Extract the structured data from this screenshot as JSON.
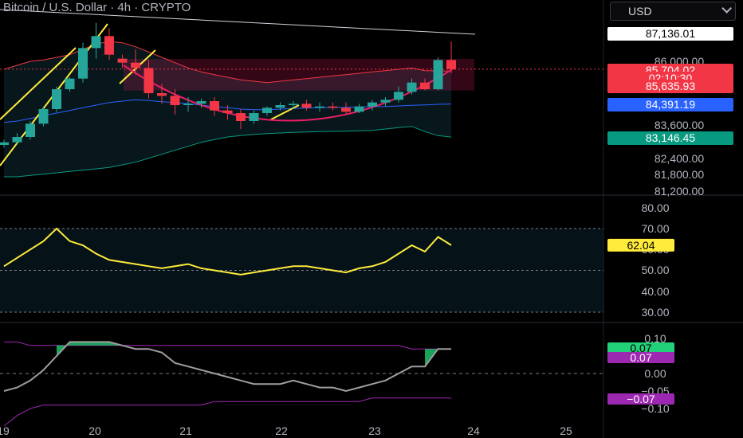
{
  "header": {
    "title": "Bitcoin / U.S. Dollar · 4h · CRYPTO",
    "currency": "USD"
  },
  "price_panel": {
    "axis_ticks": [
      "86,000.00",
      "83,600.00",
      "82,400.00",
      "81,800.00",
      "81,200.00"
    ],
    "tags": [
      {
        "text": "87,136.01",
        "bg": "#ffffff",
        "fg": "#000000",
        "name": "price-tag-high"
      },
      {
        "text": "85,704.02",
        "bg": "#f23645",
        "fg": "#ffffff",
        "name": "price-tag-last"
      },
      {
        "text": "02:10:30",
        "bg": "#f23645",
        "fg": "#ffffff",
        "name": "price-tag-countdown"
      },
      {
        "text": "85,635.93",
        "bg": "#f23645",
        "fg": "#ffffff",
        "name": "price-tag-upper-band"
      },
      {
        "text": "84,391.19",
        "bg": "#2962ff",
        "fg": "#ffffff",
        "name": "price-tag-basis"
      },
      {
        "text": "83,146.45",
        "bg": "#089981",
        "fg": "#ffffff",
        "name": "price-tag-lower-band"
      }
    ]
  },
  "rsi_panel": {
    "axis_ticks": [
      "80.00",
      "70.00",
      "60.00",
      "50.00",
      "40.00",
      "30.00"
    ],
    "tag": {
      "text": "62.04",
      "bg": "#ffeb3b",
      "fg": "#000000"
    }
  },
  "osc_panel": {
    "axis_ticks": [
      "0.10",
      "0.00",
      "−0.05",
      "−0.10"
    ],
    "tags": [
      {
        "text": "0.07",
        "bg": "#22d07a",
        "fg": "#000000",
        "name": "osc-tag-value"
      },
      {
        "text": "0.07",
        "bg": "#9c27b0",
        "fg": "#ffffff",
        "name": "osc-tag-signal"
      },
      {
        "text": "−0.07",
        "bg": "#9c27b0",
        "fg": "#ffffff",
        "name": "osc-tag-lower"
      }
    ]
  },
  "time_axis": [
    "19",
    "20",
    "21",
    "22",
    "23",
    "24",
    "25"
  ],
  "colors": {
    "up": "#26a69a",
    "down": "#f23645",
    "rsi": "#ffeb3b",
    "upper_band": "#f23645",
    "basis": "#2962ff",
    "lower_band": "#089981",
    "trendline": "#ffeb3b",
    "cup_arc": "#e91e63",
    "osc_fill": "#1fcc6f",
    "osc_band": "#9c27b0"
  },
  "chart_data": [
    {
      "type": "candlestick",
      "title": "Bitcoin / U.S. Dollar · 4h · CRYPTO",
      "x_label_days": [
        "19",
        "20",
        "21",
        "22",
        "23",
        "24",
        "25"
      ],
      "candles_ohlc": [
        [
          82850,
          83050,
          82750,
          82950
        ],
        [
          82950,
          83300,
          82900,
          83150
        ],
        [
          83150,
          83750,
          83050,
          83650
        ],
        [
          83650,
          84300,
          83550,
          84200
        ],
        [
          84200,
          85050,
          84100,
          84950
        ],
        [
          84950,
          85400,
          84850,
          85350
        ],
        [
          85350,
          86700,
          85200,
          86500
        ],
        [
          86500,
          87450,
          86100,
          86950
        ],
        [
          86950,
          87250,
          86050,
          86250
        ],
        [
          86100,
          86250,
          85750,
          85950
        ],
        [
          85950,
          86450,
          85500,
          85750
        ],
        [
          85750,
          86050,
          84600,
          84800
        ],
        [
          84800,
          85150,
          84400,
          84700
        ],
        [
          84700,
          84950,
          84000,
          84350
        ],
        [
          84350,
          84650,
          84100,
          84400
        ],
        [
          84400,
          84600,
          84250,
          84500
        ],
        [
          84500,
          84650,
          83950,
          84150
        ],
        [
          84150,
          84350,
          83800,
          84050
        ],
        [
          84050,
          84200,
          83450,
          83750
        ],
        [
          83750,
          84150,
          83650,
          84050
        ],
        [
          84050,
          84300,
          83950,
          84250
        ],
        [
          84250,
          84450,
          84150,
          84350
        ],
        [
          84350,
          84500,
          84200,
          84400
        ],
        [
          84400,
          84550,
          84150,
          84250
        ],
        [
          84250,
          84450,
          84100,
          84300
        ],
        [
          84300,
          84450,
          84150,
          84250
        ],
        [
          84250,
          84450,
          84000,
          84100
        ],
        [
          84100,
          84400,
          84050,
          84300
        ],
        [
          84300,
          84550,
          84150,
          84450
        ],
        [
          84450,
          84650,
          84300,
          84550
        ],
        [
          84550,
          85050,
          84450,
          84850
        ],
        [
          84850,
          85350,
          84750,
          85200
        ],
        [
          85200,
          85350,
          84900,
          84950
        ],
        [
          84950,
          86150,
          84900,
          86050
        ],
        [
          86050,
          86750,
          85550,
          85704
        ]
      ],
      "bollinger_upper": [
        85700,
        85850,
        86000,
        86050,
        86150,
        86250,
        86450,
        86650,
        86750,
        86700,
        86550,
        86350,
        86150,
        85950,
        85750,
        85600,
        85500,
        85400,
        85300,
        85250,
        85200,
        85250,
        85300,
        85350,
        85400,
        85450,
        85500,
        85550,
        85600,
        85650,
        85700,
        85750,
        85650,
        85640,
        85636
      ],
      "bollinger_basis": [
        83700,
        83750,
        83850,
        83950,
        84050,
        84150,
        84250,
        84350,
        84450,
        84500,
        84550,
        84520,
        84480,
        84450,
        84400,
        84350,
        84300,
        84250,
        84200,
        84180,
        84180,
        84200,
        84220,
        84240,
        84250,
        84260,
        84270,
        84280,
        84290,
        84300,
        84320,
        84340,
        84360,
        84380,
        84391
      ],
      "bollinger_lower": [
        81650,
        81650,
        81700,
        81750,
        81800,
        81850,
        81900,
        81950,
        82000,
        82100,
        82200,
        82350,
        82500,
        82650,
        82800,
        82950,
        83050,
        83150,
        83200,
        83250,
        83280,
        83300,
        83320,
        83340,
        83350,
        83360,
        83370,
        83380,
        83400,
        83450,
        83500,
        83550,
        83350,
        83200,
        83146
      ],
      "rsi": [
        52,
        56,
        60,
        64,
        70,
        64,
        62,
        58,
        55,
        54,
        53,
        52,
        51,
        52,
        53,
        51,
        50,
        49,
        48,
        49,
        50,
        51,
        52,
        52,
        51,
        50,
        49,
        51,
        52,
        54,
        58,
        62,
        59,
        66,
        62.04
      ],
      "oscillator": [
        -0.05,
        -0.04,
        -0.02,
        0.01,
        0.05,
        0.09,
        0.09,
        0.09,
        0.09,
        0.08,
        0.07,
        0.07,
        0.06,
        0.03,
        0.02,
        0.01,
        0.0,
        -0.01,
        -0.02,
        -0.03,
        -0.03,
        -0.03,
        -0.02,
        -0.03,
        -0.04,
        -0.04,
        -0.05,
        -0.04,
        -0.03,
        -0.02,
        0.0,
        0.02,
        0.02,
        0.07,
        0.07
      ],
      "osc_signal": [
        0.09,
        0.09,
        0.08,
        0.08,
        0.08,
        0.08,
        0.08,
        0.08,
        0.08,
        0.08,
        0.08,
        0.08,
        0.08,
        0.08,
        0.08,
        0.08,
        0.08,
        0.08,
        0.08,
        0.08,
        0.08,
        0.08,
        0.08,
        0.08,
        0.08,
        0.08,
        0.08,
        0.08,
        0.08,
        0.08,
        0.08,
        0.07,
        0.07,
        0.07,
        0.07
      ],
      "osc_lower_band": [
        -0.15,
        -0.12,
        -0.1,
        -0.09,
        -0.09,
        -0.09,
        -0.09,
        -0.09,
        -0.09,
        -0.09,
        -0.09,
        -0.09,
        -0.09,
        -0.09,
        -0.09,
        -0.09,
        -0.08,
        -0.08,
        -0.08,
        -0.08,
        -0.08,
        -0.08,
        -0.08,
        -0.08,
        -0.08,
        -0.08,
        -0.08,
        -0.08,
        -0.07,
        -0.07,
        -0.07,
        -0.07,
        -0.07,
        -0.07,
        -0.07
      ]
    }
  ]
}
